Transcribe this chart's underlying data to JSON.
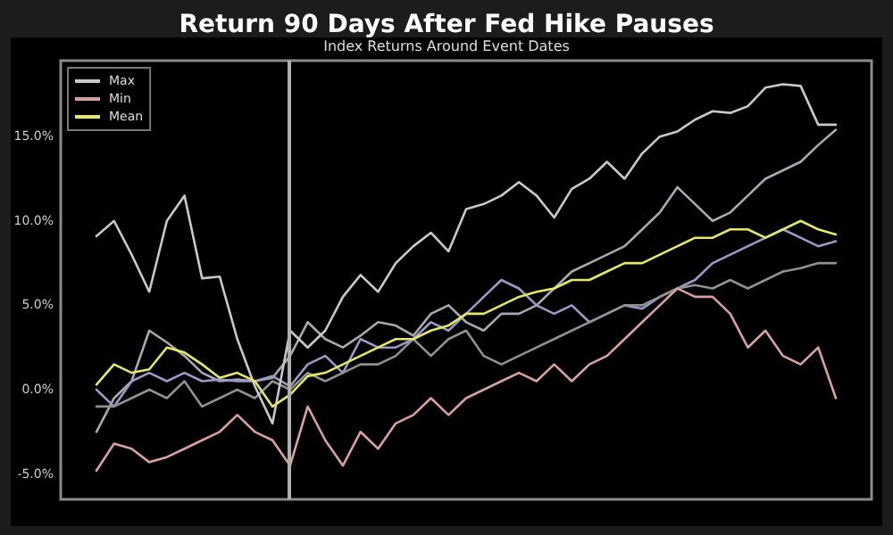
{
  "chart_data": {
    "type": "line",
    "title": "Return 90 Days After Fed Hike Pauses",
    "subtitle": "Index Returns Around Event Dates",
    "categories": [
      null,
      null,
      null,
      null,
      null,
      null,
      null,
      null,
      null,
      null,
      null,
      null,
      null,
      null,
      null,
      null,
      null,
      null,
      null,
      null,
      null,
      null,
      null,
      null,
      null,
      null,
      null,
      null,
      null,
      null,
      null,
      null,
      null,
      null,
      null,
      null,
      null,
      null,
      null,
      null,
      null,
      null,
      null
    ],
    "ylim": [
      -6.5,
      19.5
    ],
    "yticks": [
      {
        "value": -5,
        "label": "-5.0%"
      },
      {
        "value": 0,
        "label": "0.0%"
      },
      {
        "value": 5,
        "label": "5.0%"
      },
      {
        "value": 10,
        "label": "10.0%"
      },
      {
        "value": 15,
        "label": "15.0%"
      }
    ],
    "tick_labels": "y",
    "grid": false,
    "legend": "top left",
    "marker": "none",
    "line_style": "solid",
    "series": [
      {
        "name": "Max",
        "color": "#c8c8c8",
        "values": [
          9.1,
          10,
          8.0,
          5.8,
          10.0,
          11.5,
          6.6,
          6.7,
          3.0,
          0.2,
          -2.0,
          3.5,
          2.5,
          3.5,
          5.5,
          6.8,
          5.8,
          7.5,
          8.5,
          9.3,
          8.2,
          10.7,
          11,
          11.5,
          12.3,
          11.5,
          10.2,
          11.9,
          12.5,
          13.5,
          12.5,
          14,
          15,
          15.3,
          16,
          16.5,
          16.4,
          16.8,
          17.9,
          18.1,
          18.0,
          15.7,
          15.7
        ]
      },
      {
        "name": "Min",
        "color": "#d8a0a0",
        "values": [
          -4.8,
          -3.2,
          -3.5,
          -4.3,
          -4,
          -3.5,
          -3,
          -2.5,
          -1.5,
          -2.5,
          -3,
          -4.5,
          -1,
          -3,
          -4.5,
          -2.5,
          -3.5,
          -2,
          -1.5,
          -0.5,
          -1.5,
          -0.5,
          0,
          0.5,
          1,
          0.5,
          1.5,
          0.5,
          1.5,
          2,
          3,
          4,
          5,
          6,
          5.5,
          5.5,
          4.5,
          2.5,
          3.5,
          2,
          1.5,
          2.5,
          -0.5
        ]
      },
      {
        "color": "#a8a8b0",
        "values": [
          -2.5,
          -0.5,
          0.5,
          3.5,
          2.8,
          2,
          1,
          0.5,
          0.6,
          0.5,
          0.7,
          2.0,
          4.0,
          3,
          2.5,
          3.2,
          4,
          3.8,
          3.2,
          4.5,
          5,
          4,
          3.5,
          4.5,
          4.5,
          5,
          6,
          7,
          7.5,
          8,
          8.5,
          9.5,
          10.5,
          12,
          11,
          10,
          10.5,
          11.5,
          12.5,
          13,
          13.5,
          14.5,
          15.4
        ]
      },
      {
        "color": "#9a9ac8",
        "values": [
          0,
          -1,
          0.5,
          1,
          0.5,
          1,
          0.5,
          0.6,
          0.5,
          0.5,
          0.8,
          0.2,
          1.5,
          2,
          1,
          3,
          2.5,
          2.5,
          3,
          4,
          3.5,
          4.5,
          5.5,
          6.5,
          6,
          5,
          4.5,
          5,
          4,
          4.5,
          5,
          4.8,
          5.5,
          6,
          6.5,
          7.5,
          8,
          8.5,
          9,
          9.5,
          9,
          8.5,
          8.8
        ]
      },
      {
        "color": "#909090",
        "values": [
          -1,
          -1,
          -0.5,
          0,
          -0.5,
          0.5,
          -1,
          -0.5,
          0,
          -0.5,
          0.5,
          0,
          1,
          0.5,
          1,
          1.5,
          1.5,
          2.0,
          3,
          2,
          3,
          3.5,
          2,
          1.5,
          2,
          2.5,
          3,
          3.5,
          4,
          4.5,
          5,
          5,
          5.5,
          6,
          6.2,
          6,
          6.5,
          6,
          6.5,
          7,
          7.2,
          7.5,
          7.5
        ]
      },
      {
        "name": "Mean",
        "color": "#e6e66a",
        "values": [
          0.3,
          1.5,
          1.0,
          1.2,
          2.5,
          2.2,
          1.5,
          0.7,
          1.0,
          0.5,
          -1.0,
          -0.3,
          0.8,
          1.0,
          1.5,
          2.0,
          2.5,
          3.0,
          3.0,
          3.5,
          3.8,
          4.5,
          4.5,
          5.0,
          5.5,
          5.8,
          6.0,
          6.5,
          6.5,
          7.0,
          7.5,
          7.5,
          8.0,
          8.5,
          9.0,
          9.0,
          9.5,
          9.5,
          9.0,
          9.5,
          10.0,
          9.5,
          9.2
        ]
      }
    ]
  }
}
